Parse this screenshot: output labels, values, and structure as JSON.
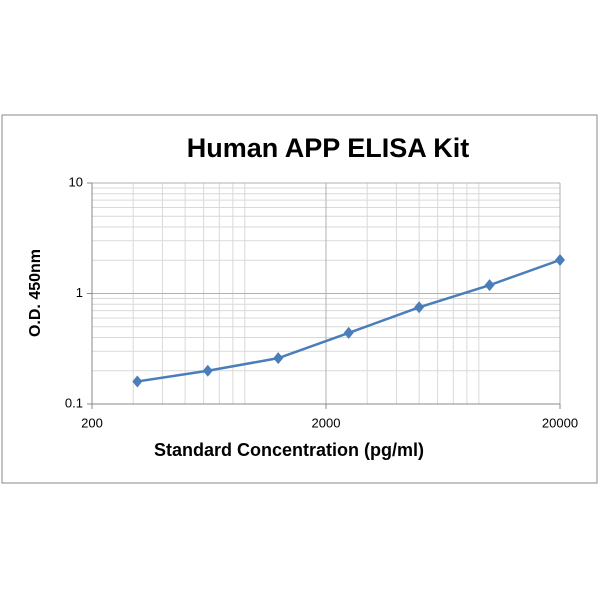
{
  "chart_data": {
    "type": "line",
    "title": "Human APP ELISA Kit",
    "x_label": "Standard Concentration (pg/ml)",
    "y_label": "O.D.  450nm",
    "x": [
      312.5,
      625,
      1250,
      2500,
      5000,
      10000,
      20000
    ],
    "series": [
      {
        "name": "O.D. 450nm",
        "color": "#4a7ebb",
        "values": [
          0.16,
          0.2,
          0.26,
          0.44,
          0.75,
          1.19,
          2.01
        ]
      }
    ],
    "xlim": [
      200,
      20000
    ],
    "xticks": [
      200,
      2000,
      20000
    ],
    "ylim": [
      0.1,
      10
    ],
    "yticks": [
      0.1,
      1,
      10
    ],
    "xlog": true,
    "ylog": true,
    "grid": true,
    "minor_grid": true
  }
}
